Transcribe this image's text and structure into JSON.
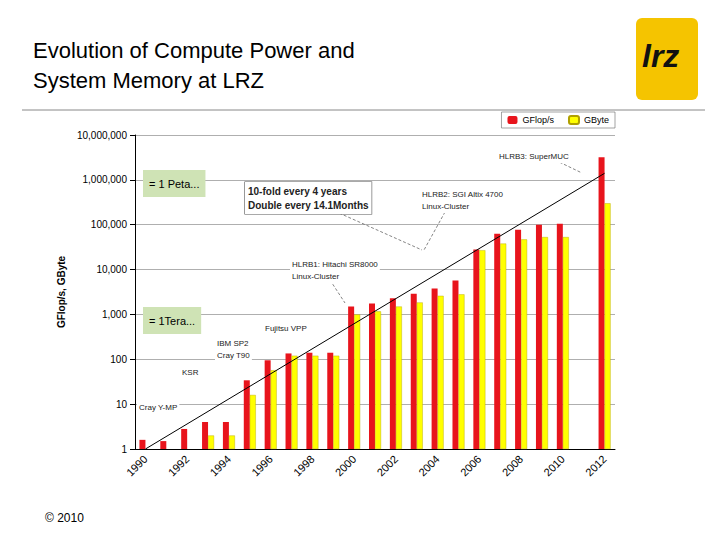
{
  "slide": {
    "title": "Evolution of Compute Power and System Memory at LRZ",
    "logo": "lrz",
    "footer": "© 2010"
  },
  "chart_data": {
    "type": "bar",
    "categories": [
      "1990",
      null,
      "1992",
      null,
      "1994",
      null,
      "1996",
      null,
      "1998",
      null,
      "2000",
      null,
      "2002",
      null,
      "2004",
      null,
      "2006",
      null,
      "2008",
      null,
      "2010",
      null,
      "2012"
    ],
    "ylabel": "GFlop/s, GByte",
    "log": "y",
    "ylim": [
      1,
      10000000
    ],
    "yticks": [
      1,
      10,
      100,
      {
        "value": 1000,
        "label": "1,000"
      },
      {
        "value": 10000,
        "label": "10,000"
      },
      {
        "value": 100000,
        "label": "100,000"
      },
      {
        "value": 1000000,
        "label": "1,000,000"
      },
      {
        "value": 10000000,
        "label": "10,000,000"
      }
    ],
    "grid": true,
    "legend": "upper right",
    "series": [
      {
        "name": "GFlop/s",
        "color": "#e8141c",
        "values": [
          1.6,
          1.5,
          2.8,
          4,
          4,
          34,
          95,
          135,
          140,
          140,
          1500,
          1750,
          2300,
          2900,
          3800,
          5700,
          28000,
          63000,
          77000,
          100000,
          105000,
          null,
          3200000
        ]
      },
      {
        "name": "GByte",
        "color": "#ffff00",
        "values": [
          null,
          null,
          null,
          2,
          2,
          16,
          57,
          120,
          120,
          120,
          1000,
          1170,
          1500,
          1850,
          2600,
          2800,
          27000,
          38000,
          47000,
          53000,
          53000,
          null,
          300000
        ]
      },
      {
        "type": "line",
        "color": "#000000",
        "values": [
          1,
          null,
          null,
          null,
          null,
          null,
          null,
          null,
          null,
          null,
          null,
          null,
          null,
          null,
          null,
          null,
          null,
          null,
          null,
          null,
          null,
          null,
          1400000
        ]
      }
    ],
    "annotations": [
      "HLRB3: SuperMUC",
      "= 1 Peta...",
      "10-fold every 4 years\nDouble every 14.1Months",
      "HLRB2: SGI Altix 4700\nLinux-Cluster",
      "HLRB1: Hitachi SR8000\nLinux-Cluster",
      "= 1Tera...",
      "Fujitsu VPP",
      "IBM SP2\nCray T90",
      "KSR",
      "Cray Y-MP"
    ]
  }
}
